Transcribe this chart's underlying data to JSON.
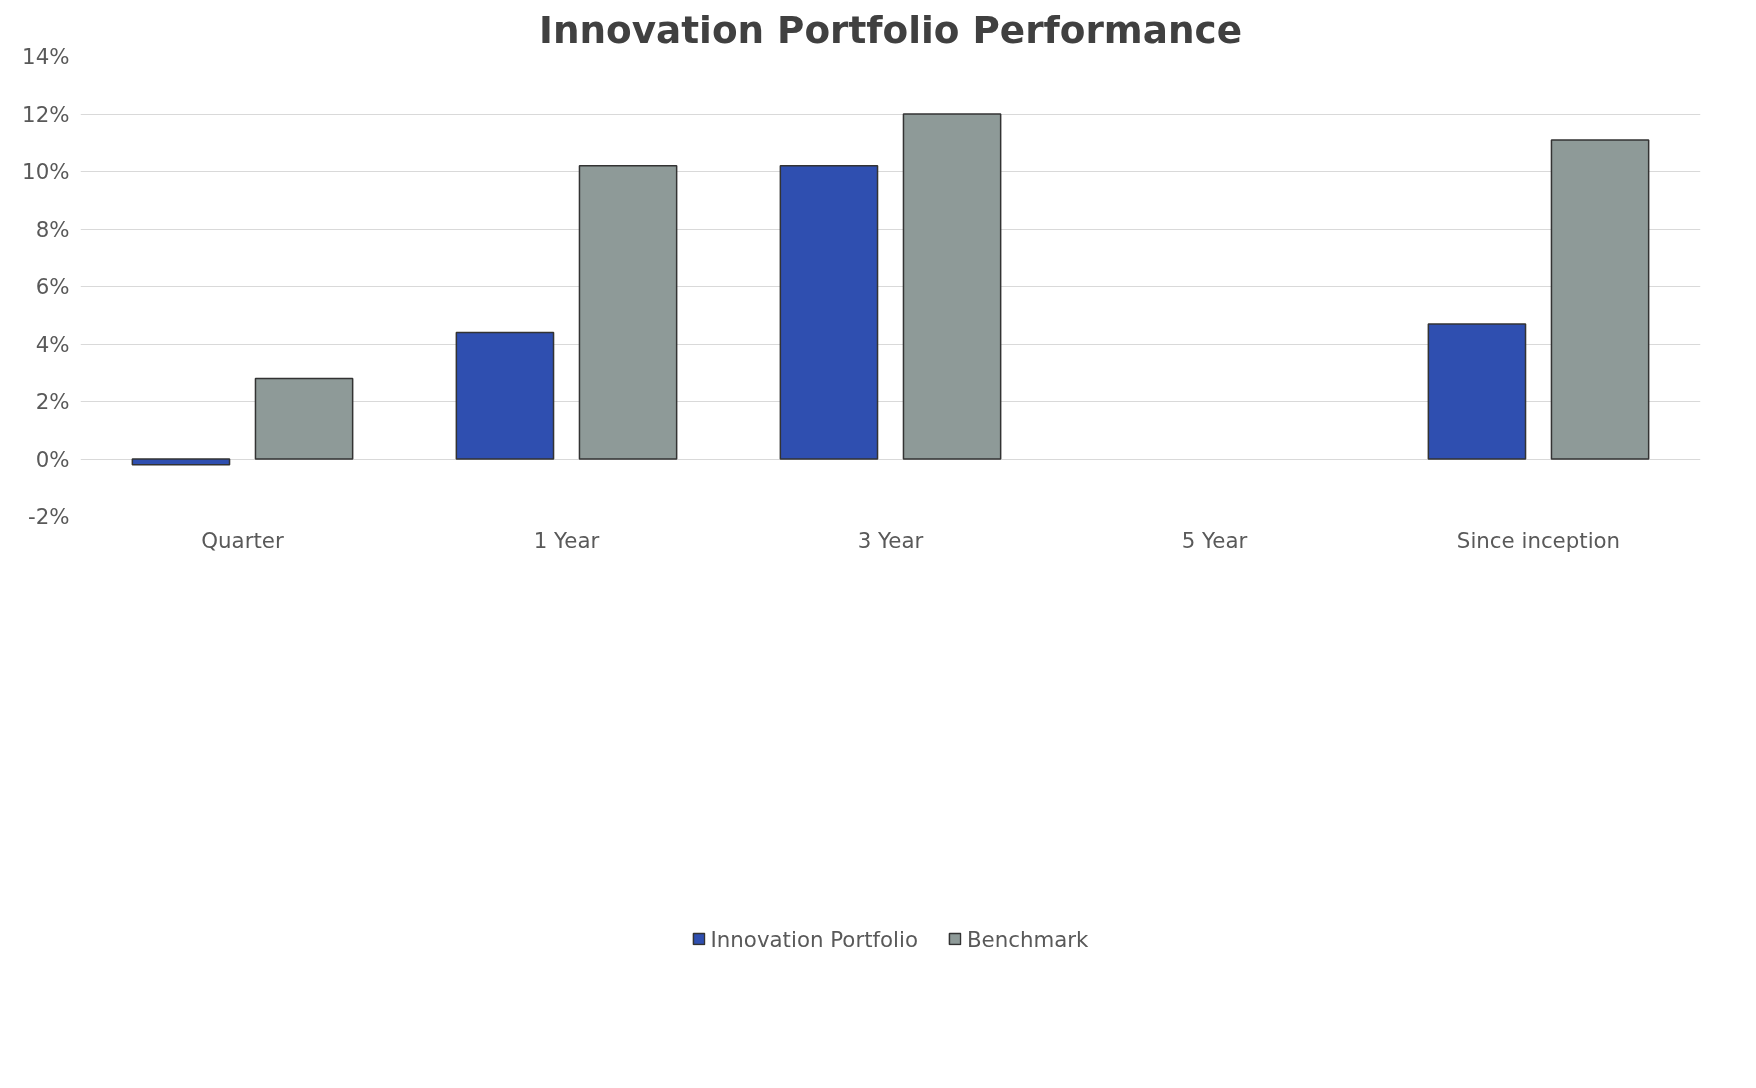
{
  "chart_data": {
    "type": "bar",
    "title": "Innovation Portfolio Performance",
    "categories": [
      "Quarter",
      "1 Year",
      "3 Year",
      "5 Year",
      "Since inception"
    ],
    "series": [
      {
        "name": "Innovation Portfolio",
        "color": "#2f4fb0",
        "values": [
          -0.2,
          4.4,
          10.2,
          null,
          4.7
        ]
      },
      {
        "name": "Benchmark",
        "color": "#8e9a98",
        "values": [
          2.8,
          10.2,
          12.0,
          null,
          11.1
        ]
      }
    ],
    "ylim": [
      -2,
      14
    ],
    "yticks": [
      {
        "value": -2,
        "label": "-2%"
      },
      {
        "value": 0,
        "label": "0%"
      },
      {
        "value": 2,
        "label": "2%"
      },
      {
        "value": 4,
        "label": "4%"
      },
      {
        "value": 6,
        "label": "6%"
      },
      {
        "value": 8,
        "label": "8%"
      },
      {
        "value": 10,
        "label": "10%"
      },
      {
        "value": 12,
        "label": "12%"
      },
      {
        "value": 14,
        "label": "14%"
      }
    ],
    "grid": "y",
    "legend": "bottom"
  }
}
